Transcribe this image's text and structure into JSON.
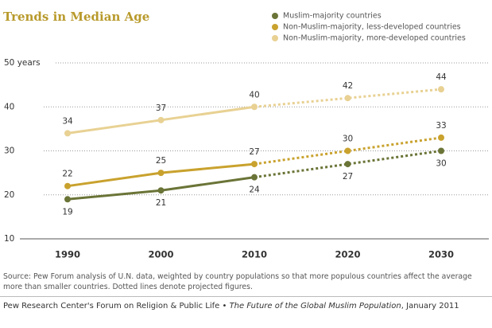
{
  "chart_data": {
    "type": "line",
    "title": "Trends in Median Age",
    "x": [
      1990,
      2000,
      2010,
      2020,
      2030
    ],
    "series": [
      {
        "name": "Muslim-majority countries",
        "color": "#6b7437",
        "values": [
          19,
          21,
          24,
          27,
          30
        ],
        "label_position": "below"
      },
      {
        "name": "Non-Muslim-majority, less-developed countries",
        "color": "#c9a22e",
        "values": [
          22,
          25,
          27,
          30,
          33
        ],
        "label_position": "above"
      },
      {
        "name": "Non-Muslim-majority, more-developed countries",
        "color": "#e8d193",
        "values": [
          34,
          37,
          40,
          42,
          44
        ],
        "label_position": "above"
      }
    ],
    "projected_from": 2010,
    "ylim": [
      10,
      50
    ],
    "yticks": [
      10,
      20,
      30,
      40,
      {
        "value": 50,
        "label": "50 years"
      }
    ],
    "xlim": [
      1990,
      2030
    ],
    "grid": true,
    "source": "Source: Pew Forum analysis of U.N. data, weighted by country populations so that more populous countries affect the average more than smaller countries. Dotted lines denote projected figures.",
    "credit": {
      "org": "Pew Research Center's Forum on Religion & Public Life •",
      "publication": "The Future of the Global Muslim Population",
      "date": ", January 2011"
    }
  }
}
